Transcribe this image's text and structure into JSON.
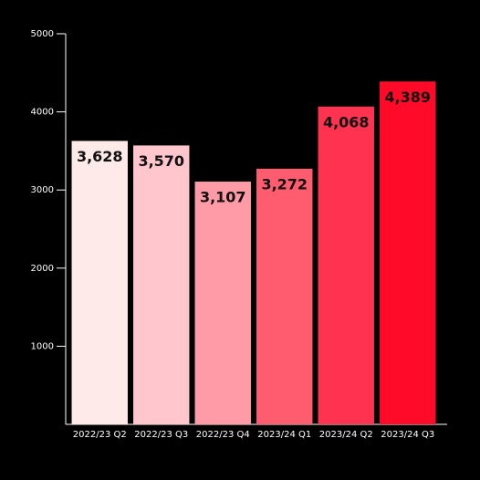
{
  "chart_data": {
    "type": "bar",
    "categories": [
      "2022/23 Q2",
      "2022/23 Q3",
      "2022/23 Q4",
      "2023/24 Q1",
      "2023/24 Q2",
      "2023/24 Q3"
    ],
    "values": [
      3628,
      3570,
      3107,
      3272,
      4068,
      4389
    ],
    "value_labels": [
      "3,628",
      "3,570",
      "3,107",
      "3,272",
      "4,068",
      "4,389"
    ],
    "colors": [
      "#ffeaea",
      "#ffc6cd",
      "#ff9aa6",
      "#ff5c70",
      "#ff3350",
      "#ff0a28"
    ],
    "ylim": [
      0,
      5000
    ],
    "yticks": [
      1000,
      2000,
      3000,
      4000,
      5000
    ]
  }
}
